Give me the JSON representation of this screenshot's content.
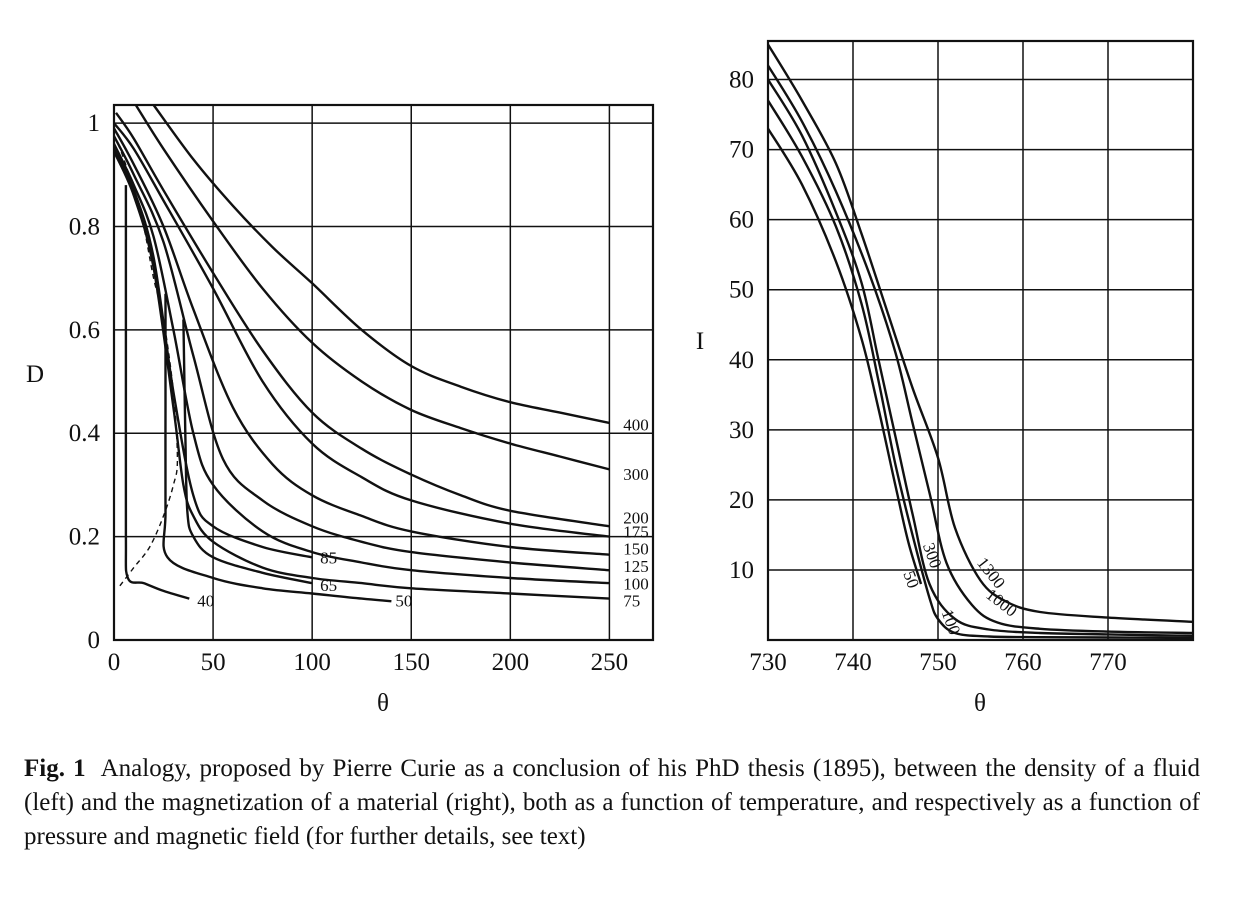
{
  "chart_data": [
    {
      "type": "line",
      "xlabel": "θ",
      "ylabel": "D",
      "xlim": [
        0,
        272
      ],
      "ylim": [
        0,
        1.035
      ],
      "xticks": [
        0,
        50,
        100,
        150,
        200,
        250
      ],
      "yticks": [
        0,
        0.2,
        0.4,
        0.6,
        0.8,
        1
      ],
      "ytick_labels": [
        "0",
        "0.2",
        "0.4",
        "0.6",
        "0.8",
        "1"
      ],
      "grid": true,
      "series": [
        {
          "name": "400",
          "label_at": [
            257,
            0.405
          ],
          "x": [
            20,
            40,
            60,
            80,
            100,
            125,
            150,
            175,
            200,
            225,
            250
          ],
          "y": [
            1.035,
            0.93,
            0.84,
            0.76,
            0.69,
            0.6,
            0.53,
            0.49,
            0.46,
            0.44,
            0.42
          ]
        },
        {
          "name": "300",
          "label_at": [
            257,
            0.31
          ],
          "x": [
            11,
            25,
            50,
            75,
            100,
            125,
            150,
            175,
            200,
            225,
            250
          ],
          "y": [
            1.035,
            0.95,
            0.81,
            0.68,
            0.575,
            0.5,
            0.445,
            0.41,
            0.38,
            0.355,
            0.33
          ]
        },
        {
          "name": "200",
          "label_at": [
            257,
            0.225
          ],
          "x": [
            1,
            10,
            25,
            50,
            75,
            100,
            125,
            150,
            175,
            200,
            250
          ],
          "y": [
            1.02,
            0.97,
            0.87,
            0.71,
            0.56,
            0.44,
            0.37,
            0.32,
            0.28,
            0.25,
            0.22
          ]
        },
        {
          "name": "175",
          "label_at": [
            257,
            0.198
          ],
          "x": [
            0,
            10,
            25,
            50,
            75,
            100,
            125,
            150,
            200,
            250
          ],
          "y": [
            1.0,
            0.95,
            0.85,
            0.68,
            0.5,
            0.38,
            0.315,
            0.27,
            0.225,
            0.2
          ]
        },
        {
          "name": "150",
          "label_at": [
            257,
            0.165
          ],
          "x": [
            0,
            10,
            25,
            40,
            60,
            80,
            100,
            125,
            150,
            200,
            250
          ],
          "y": [
            0.99,
            0.92,
            0.8,
            0.64,
            0.45,
            0.34,
            0.28,
            0.24,
            0.21,
            0.18,
            0.165
          ]
        },
        {
          "name": "125",
          "label_at": [
            257,
            0.132
          ],
          "x": [
            0,
            10,
            25,
            40,
            55,
            75,
            100,
            125,
            150,
            200,
            250
          ],
          "y": [
            0.975,
            0.9,
            0.77,
            0.55,
            0.35,
            0.27,
            0.22,
            0.19,
            0.17,
            0.15,
            0.135
          ]
        },
        {
          "name": "100",
          "label_at": [
            257,
            0.098
          ],
          "x": [
            0,
            10,
            20,
            30,
            40,
            50,
            75,
            100,
            125,
            150,
            200,
            250
          ],
          "y": [
            0.96,
            0.88,
            0.78,
            0.6,
            0.4,
            0.3,
            0.21,
            0.17,
            0.15,
            0.135,
            0.12,
            0.11
          ]
        },
        {
          "name": "75",
          "label_at": [
            257,
            0.065
          ],
          "x": [
            0,
            10,
            20,
            30,
            35,
            40,
            50,
            75,
            100,
            125,
            150,
            200,
            250
          ],
          "y": [
            0.945,
            0.86,
            0.72,
            0.45,
            0.3,
            0.24,
            0.19,
            0.14,
            0.12,
            0.11,
            0.1,
            0.09,
            0.08
          ]
        },
        {
          "name": "85",
          "label_at": [
            104,
            0.148
          ],
          "x": [
            0,
            10,
            20,
            30,
            40,
            50,
            75,
            100
          ],
          "y": [
            0.95,
            0.87,
            0.74,
            0.48,
            0.28,
            0.22,
            0.18,
            0.16
          ]
        },
        {
          "name": "65",
          "label_at": [
            104,
            0.095
          ],
          "x": [
            35,
            36,
            37,
            40,
            50,
            75,
            100
          ],
          "y": [
            0.62,
            0.4,
            0.25,
            0.2,
            0.16,
            0.13,
            0.11
          ]
        },
        {
          "name": "50",
          "label_at": [
            142,
            0.065
          ],
          "x": [
            26,
            26,
            26,
            27,
            50,
            75,
            100,
            125,
            140
          ],
          "y": [
            0.67,
            0.45,
            0.25,
            0.16,
            0.12,
            0.1,
            0.09,
            0.08,
            0.075
          ]
        },
        {
          "name": "40",
          "label_at": [
            42,
            0.065
          ],
          "x": [
            6,
            6,
            6,
            7,
            15,
            25,
            38
          ],
          "y": [
            0.88,
            0.5,
            0.2,
            0.12,
            0.11,
            0.095,
            0.08
          ]
        },
        {
          "name": "",
          "style": "dashed",
          "x": [
            2,
            5,
            10,
            15,
            20,
            25,
            30,
            32,
            30,
            25,
            18,
            10,
            2
          ],
          "y": [
            0.96,
            0.93,
            0.87,
            0.8,
            0.7,
            0.62,
            0.48,
            0.35,
            0.3,
            0.24,
            0.18,
            0.14,
            0.1
          ]
        }
      ]
    },
    {
      "type": "line",
      "xlabel": "θ",
      "ylabel": "I",
      "xlim": [
        730,
        780
      ],
      "ylim": [
        0,
        85.5
      ],
      "xticks": [
        730,
        740,
        750,
        760,
        770
      ],
      "yticks": [
        10,
        20,
        30,
        40,
        50,
        60,
        70,
        80
      ],
      "grid": true,
      "series": [
        {
          "name": "50",
          "label_at": [
            745.9,
            9.5
          ],
          "label_angle": 70,
          "x": [
            730,
            734,
            738,
            741,
            743,
            745,
            746.5,
            748
          ],
          "y": [
            73,
            65,
            54,
            43,
            33,
            22,
            14,
            8
          ]
        },
        {
          "name": "100",
          "label_at": [
            750.4,
            4
          ],
          "label_angle": 70,
          "x": [
            730,
            734,
            738,
            741,
            743,
            745,
            747,
            749,
            750,
            752,
            756,
            762,
            770,
            780
          ],
          "y": [
            77,
            69,
            59,
            48,
            37,
            25,
            15,
            6,
            3,
            1,
            0.5,
            0.4,
            0.35,
            0.3
          ]
        },
        {
          "name": "300",
          "label_at": [
            748.2,
            13.5
          ],
          "label_angle": 70,
          "x": [
            730,
            734,
            738,
            741,
            743,
            745,
            747,
            749,
            752,
            756,
            762,
            770,
            780
          ],
          "y": [
            80,
            72,
            61,
            51,
            40,
            29,
            18,
            8,
            3,
            1.5,
            1,
            0.8,
            0.6
          ]
        },
        {
          "name": "1000",
          "label_at": [
            755.5,
            6.2
          ],
          "label_angle": 38,
          "x": [
            730,
            734,
            738,
            742,
            745,
            747,
            749,
            751,
            754,
            757,
            762,
            770,
            780
          ],
          "y": [
            82,
            74,
            64,
            52,
            41,
            31,
            21,
            11,
            5,
            2.5,
            1.6,
            1.2,
            1.0
          ]
        },
        {
          "name": "1300",
          "label_at": [
            754.5,
            11
          ],
          "label_angle": 52,
          "x": [
            730,
            734,
            738,
            741,
            744,
            747,
            750,
            752,
            755,
            758,
            762,
            770,
            780
          ],
          "y": [
            85,
            77,
            68,
            58,
            47,
            36,
            26,
            16,
            8.5,
            5.5,
            4,
            3.2,
            2.6
          ]
        }
      ]
    }
  ],
  "caption": {
    "label": "Fig. 1",
    "text": "Analogy, proposed by Pierre Curie as a conclusion of his PhD thesis (1895), between the density of a fluid (left) and the magnetization of a material (right), both as a function of temperature, and respectively as a function of pressure and magnetic field (for further details, see text)"
  }
}
